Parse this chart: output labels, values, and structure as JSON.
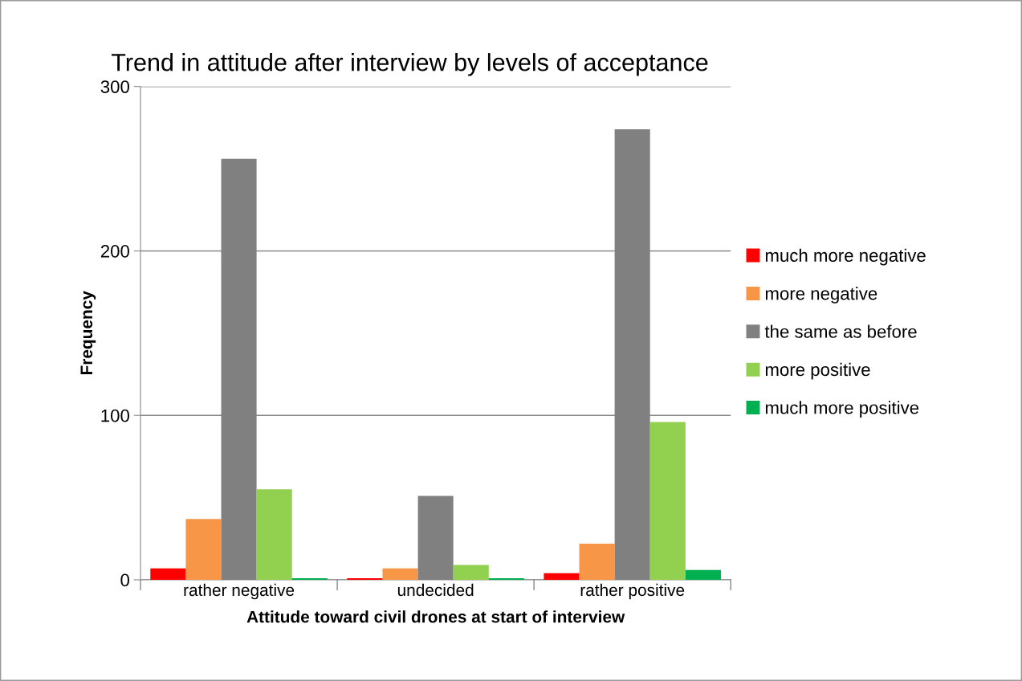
{
  "chart_data": {
    "type": "bar",
    "title": "Trend in attitude after interview by levels of acceptance",
    "xlabel": "Attitude toward civil drones at start of interview",
    "ylabel": "Frequency",
    "categories": [
      "rather negative",
      "undecided",
      "rather positive"
    ],
    "series": [
      {
        "name": "much more negative",
        "color": "#ff0000",
        "values": [
          7,
          1,
          4
        ]
      },
      {
        "name": "more negative",
        "color": "#f79646",
        "values": [
          37,
          7,
          22
        ]
      },
      {
        "name": "the same as before",
        "color": "#808080",
        "values": [
          256,
          51,
          274
        ]
      },
      {
        "name": "more positive",
        "color": "#92d050",
        "values": [
          55,
          9,
          96
        ]
      },
      {
        "name": "much more positive",
        "color": "#00b050",
        "values": [
          1,
          1,
          6
        ]
      }
    ],
    "ylim": [
      0,
      300
    ],
    "yticks": [
      0,
      100,
      200,
      300
    ],
    "grid": "y",
    "legend": "right"
  }
}
